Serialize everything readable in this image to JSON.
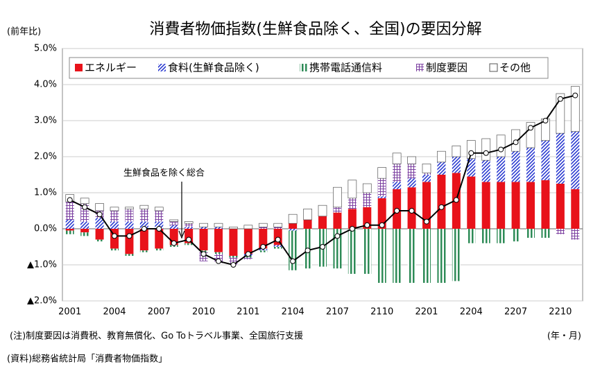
{
  "chart_data": {
    "type": "bar",
    "stacked": true,
    "title": "消費者物価指数(生鮮食品除く、全国)の要因分解",
    "y_unit_label": "(前年比)",
    "x_unit_label": "(年・月)",
    "note": "(注)制度要因は消費税、教育無償化、Go Toトラベル事業、全国旅行支援",
    "source": "(資料)総務省統計局「消費者物価指数」",
    "categories": [
      "2001",
      null,
      null,
      "2004",
      null,
      null,
      "2007",
      null,
      null,
      "2010",
      null,
      null,
      "2101",
      null,
      null,
      "2104",
      null,
      null,
      "2107",
      null,
      null,
      "2110",
      null,
      null,
      "2201",
      null,
      null,
      "2204",
      null,
      null,
      "2207",
      null,
      null,
      "2210",
      null
    ],
    "series": [
      {
        "name": "エネルギー",
        "color": "#e8121a",
        "values": [
          -0.05,
          -0.1,
          -0.3,
          -0.55,
          -0.7,
          -0.6,
          -0.55,
          -0.45,
          -0.4,
          -0.6,
          -0.65,
          -0.75,
          -0.7,
          -0.55,
          -0.45,
          0.15,
          0.25,
          0.35,
          0.45,
          0.55,
          0.6,
          0.85,
          1.1,
          1.15,
          1.3,
          1.5,
          1.55,
          1.45,
          1.3,
          1.3,
          1.3,
          1.3,
          1.35,
          1.25,
          1.1
        ]
      },
      {
        "name": "食料(生鮮食品除く)",
        "color": "#2b3bd1",
        "values": [
          0.25,
          0.2,
          0.3,
          0.2,
          0.2,
          0.2,
          0.2,
          0.1,
          0.05,
          0.05,
          0.05,
          0.0,
          -0.05,
          -0.05,
          -0.05,
          -0.05,
          0.0,
          0.0,
          0.0,
          0.0,
          0.0,
          0.05,
          0.2,
          0.25,
          0.2,
          0.35,
          0.45,
          0.5,
          0.6,
          0.7,
          0.85,
          0.95,
          1.1,
          1.4,
          1.6
        ]
      },
      {
        "name": "携帯電話通信料",
        "color": "#2e8b57",
        "values": [
          -0.1,
          -0.1,
          -0.05,
          -0.05,
          -0.05,
          -0.05,
          -0.05,
          -0.05,
          -0.05,
          -0.05,
          -0.05,
          -0.05,
          -0.05,
          -0.05,
          -0.05,
          -1.1,
          -1.1,
          -1.05,
          -1.1,
          -1.25,
          -1.25,
          -1.5,
          -1.5,
          -1.5,
          -1.5,
          -1.5,
          -1.45,
          -0.4,
          -0.4,
          -0.4,
          -0.35,
          -0.25,
          -0.25,
          0,
          0
        ]
      },
      {
        "name": "制度要因",
        "color": "#7b3fa0",
        "values": [
          0.5,
          0.5,
          0.2,
          0.3,
          0.35,
          0.35,
          0.3,
          0.1,
          0.1,
          -0.25,
          -0.25,
          -0.2,
          -0.05,
          0.05,
          0.05,
          0.0,
          0.0,
          0.0,
          0.15,
          0.3,
          0.4,
          0.5,
          0.5,
          0.4,
          0.05,
          0.0,
          0.0,
          0.0,
          0.0,
          0.0,
          0.0,
          0.0,
          0.0,
          -0.15,
          -0.3
        ]
      },
      {
        "name": "その他",
        "color": "#ffffff",
        "values": [
          0.2,
          0.15,
          0.2,
          0.1,
          0.05,
          0.1,
          0.1,
          0.05,
          0.05,
          0.1,
          0.1,
          0.05,
          0.1,
          0.1,
          0.1,
          0.25,
          0.3,
          0.3,
          0.55,
          0.5,
          0.25,
          0.3,
          0.3,
          0.2,
          0.25,
          0.3,
          0.3,
          0.5,
          0.6,
          0.6,
          0.6,
          0.7,
          0.6,
          1.1,
          1.25
        ]
      }
    ],
    "line_series": {
      "name": "生鮮食品を除く総合",
      "color": "#000000",
      "values": [
        0.8,
        0.6,
        0.4,
        -0.2,
        -0.2,
        0.0,
        0.0,
        -0.4,
        -0.3,
        -0.7,
        -0.9,
        -1.0,
        -0.7,
        -0.5,
        -0.3,
        -0.9,
        -0.6,
        -0.5,
        -0.2,
        0.0,
        0.1,
        0.1,
        0.5,
        0.5,
        0.2,
        0.6,
        0.8,
        2.1,
        2.1,
        2.2,
        2.4,
        2.8,
        3.0,
        3.6,
        3.7
      ]
    },
    "ylim": [
      -2.0,
      5.0
    ],
    "yticks": [
      {
        "value": -2.0,
        "label": "▲2.0%"
      },
      {
        "value": -1.0,
        "label": "▲1.0%"
      },
      {
        "value": 0.0,
        "label": "0.0%"
      },
      {
        "value": 1.0,
        "label": "1.0%"
      },
      {
        "value": 2.0,
        "label": "2.0%"
      },
      {
        "value": 3.0,
        "label": "3.0%"
      },
      {
        "value": 4.0,
        "label": "4.0%"
      },
      {
        "value": 5.0,
        "label": "5.0%"
      }
    ],
    "grid": true,
    "legend": "top"
  }
}
